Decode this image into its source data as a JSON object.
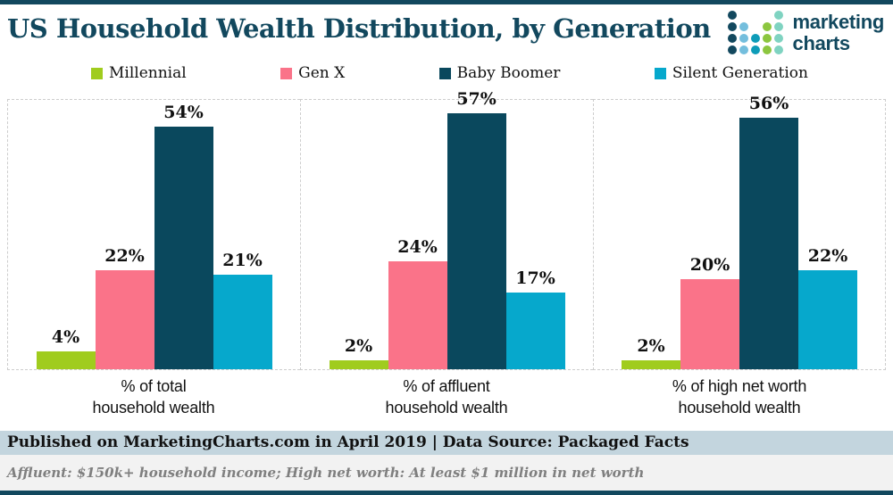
{
  "header": {
    "title": "US Household Wealth Distribution, by Generation",
    "logo": {
      "line1": "marketing",
      "line2": "charts",
      "dot_colors": {
        "dk": "#12485e",
        "lb": "#74bedd",
        "tl": "#0e9cb8",
        "gr": "#8cc63f",
        "aq": "#7fd3c1"
      },
      "dot_pattern": [
        [
          "dk",
          "",
          "",
          "",
          "aq"
        ],
        [
          "dk",
          "lb",
          "",
          "gr",
          "aq"
        ],
        [
          "dk",
          "lb",
          "tl",
          "gr",
          "aq"
        ],
        [
          "dk",
          "lb",
          "tl",
          "gr",
          "aq"
        ]
      ]
    }
  },
  "legend": {
    "items": [
      {
        "label": "Millennial",
        "color": "#a0cc1e"
      },
      {
        "label": "Gen X",
        "color": "#fa7389"
      },
      {
        "label": "Baby Boomer",
        "color": "#0a485d"
      },
      {
        "label": "Silent Generation",
        "color": "#06a8cc"
      }
    ]
  },
  "chart_data": {
    "type": "bar",
    "title": "US Household Wealth Distribution, by Generation",
    "categories": [
      "% of total household wealth",
      "% of affluent household wealth",
      "% of high net worth household wealth"
    ],
    "category_captions": [
      "% of total\nhousehold wealth",
      "% of affluent\nhousehold wealth",
      "% of high net worth\nhousehold wealth"
    ],
    "series": [
      {
        "name": "Millennial",
        "color": "#a0cc1e",
        "values": [
          4,
          2,
          2
        ]
      },
      {
        "name": "Gen X",
        "color": "#fa7389",
        "values": [
          22,
          24,
          20
        ]
      },
      {
        "name": "Baby Boomer",
        "color": "#0a485d",
        "values": [
          54,
          57,
          56
        ]
      },
      {
        "name": "Silent Generation",
        "color": "#06a8cc",
        "values": [
          21,
          17,
          22
        ]
      }
    ],
    "value_suffix": "%",
    "ylim": [
      0,
      60
    ],
    "grid": false,
    "legend_position": "top"
  },
  "footer": {
    "published": "Published on MarketingCharts.com in April 2019 | Data Source: Packaged Facts",
    "note": "Affluent: $150k+ household income; High net worth: At least $1 million in net worth"
  },
  "colors": {
    "accent_teal": "#12485e",
    "published_bg": "#c3d5de",
    "note_bg": "#f2f2f2",
    "note_text": "#7f7f7f",
    "panel_border": "#cdcdcd"
  }
}
